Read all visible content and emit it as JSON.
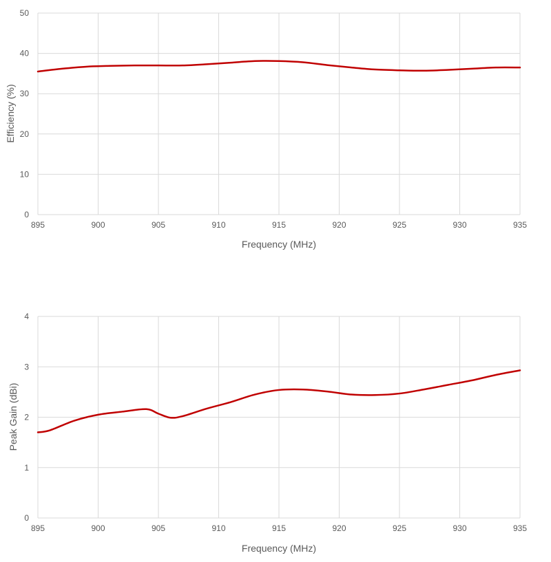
{
  "chart_data": [
    {
      "type": "line",
      "xlabel": "Frequency (MHz)",
      "ylabel": "Efficiency (%)",
      "xlim": [
        895,
        935
      ],
      "ylim": [
        0,
        50
      ],
      "x_ticks": [
        895,
        900,
        905,
        910,
        915,
        920,
        925,
        930,
        935
      ],
      "y_ticks": [
        0,
        10,
        20,
        30,
        40,
        50
      ],
      "grid": true,
      "series": [
        {
          "color": "#c00000",
          "x": [
            895,
            897,
            899,
            901,
            903,
            905,
            907,
            909,
            911,
            913,
            915,
            917,
            919,
            921,
            923,
            925,
            927,
            929,
            931,
            933,
            935
          ],
          "y": [
            35.5,
            36.2,
            36.7,
            36.9,
            37.0,
            37.0,
            37.0,
            37.3,
            37.7,
            38.1,
            38.1,
            37.8,
            37.1,
            36.5,
            36.0,
            35.8,
            35.7,
            35.9,
            36.2,
            36.5,
            36.5
          ]
        }
      ]
    },
    {
      "type": "line",
      "xlabel": "Frequency (MHz)",
      "ylabel": "Peak Gain (dBi)",
      "xlim": [
        895,
        935
      ],
      "ylim": [
        0,
        4
      ],
      "x_ticks": [
        895,
        900,
        905,
        910,
        915,
        920,
        925,
        930,
        935
      ],
      "y_ticks": [
        0,
        1,
        2,
        3,
        4
      ],
      "grid": true,
      "series": [
        {
          "color": "#c00000",
          "x": [
            895,
            896,
            898,
            900,
            902,
            904,
            905,
            906,
            907,
            909,
            911,
            913,
            915,
            917,
            919,
            921,
            923,
            925,
            927,
            929,
            931,
            933,
            935
          ],
          "y": [
            1.7,
            1.74,
            1.93,
            2.05,
            2.11,
            2.16,
            2.07,
            1.99,
            2.02,
            2.17,
            2.3,
            2.45,
            2.54,
            2.55,
            2.51,
            2.45,
            2.44,
            2.47,
            2.55,
            2.64,
            2.73,
            2.84,
            2.93
          ]
        }
      ]
    }
  ]
}
